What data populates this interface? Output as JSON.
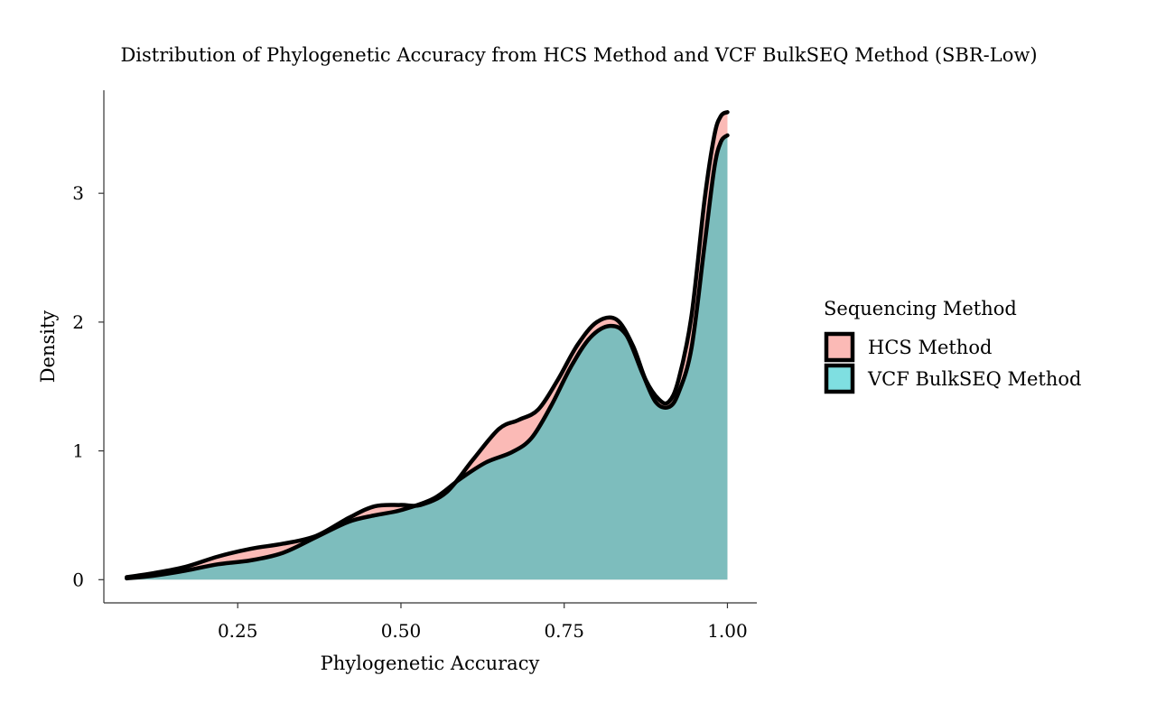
{
  "chart_data": {
    "type": "area",
    "title": "Distribution of Phylogenetic Accuracy from HCS Method and VCF BulkSEQ Method (SBR-Low)",
    "xlabel": "Phylogenetic Accuracy",
    "ylabel": "Density",
    "xlim": [
      0.045,
      1.045
    ],
    "ylim": [
      -0.18,
      3.8
    ],
    "x_ticks": [
      0.25,
      0.5,
      0.75,
      1.0
    ],
    "x_tick_labels": [
      "0.25",
      "0.50",
      "0.75",
      "1.00"
    ],
    "y_ticks": [
      0,
      1,
      2,
      3
    ],
    "y_tick_labels": [
      "0",
      "1",
      "2",
      "3"
    ],
    "grid": false,
    "legend": {
      "title": "Sequencing Method",
      "position": "right"
    },
    "series": [
      {
        "name": "HCS Method",
        "color": "#F8766D",
        "fill_opacity": 0.5,
        "x": [
          0.08,
          0.12,
          0.17,
          0.22,
          0.27,
          0.32,
          0.37,
          0.42,
          0.46,
          0.5,
          0.53,
          0.57,
          0.61,
          0.65,
          0.68,
          0.71,
          0.74,
          0.77,
          0.8,
          0.83,
          0.855,
          0.875,
          0.895,
          0.91,
          0.925,
          0.945,
          0.965,
          0.98,
          0.99,
          1.0
        ],
        "y": [
          0.02,
          0.05,
          0.1,
          0.18,
          0.24,
          0.28,
          0.34,
          0.48,
          0.57,
          0.58,
          0.58,
          0.68,
          0.93,
          1.17,
          1.24,
          1.32,
          1.55,
          1.82,
          2.0,
          2.02,
          1.82,
          1.55,
          1.4,
          1.38,
          1.55,
          2.05,
          2.95,
          3.45,
          3.6,
          3.63
        ]
      },
      {
        "name": "VCF BulkSEQ Method",
        "color": "#00BFC4",
        "fill_opacity": 0.5,
        "x": [
          0.08,
          0.12,
          0.17,
          0.22,
          0.27,
          0.32,
          0.37,
          0.42,
          0.46,
          0.5,
          0.55,
          0.59,
          0.63,
          0.67,
          0.7,
          0.73,
          0.76,
          0.79,
          0.82,
          0.845,
          0.87,
          0.89,
          0.91,
          0.925,
          0.945,
          0.965,
          0.98,
          0.99,
          1.0
        ],
        "y": [
          0.01,
          0.03,
          0.07,
          0.12,
          0.15,
          0.21,
          0.33,
          0.45,
          0.5,
          0.54,
          0.63,
          0.78,
          0.91,
          0.99,
          1.1,
          1.35,
          1.65,
          1.88,
          1.97,
          1.9,
          1.6,
          1.38,
          1.34,
          1.45,
          1.8,
          2.6,
          3.2,
          3.4,
          3.45
        ]
      }
    ]
  }
}
